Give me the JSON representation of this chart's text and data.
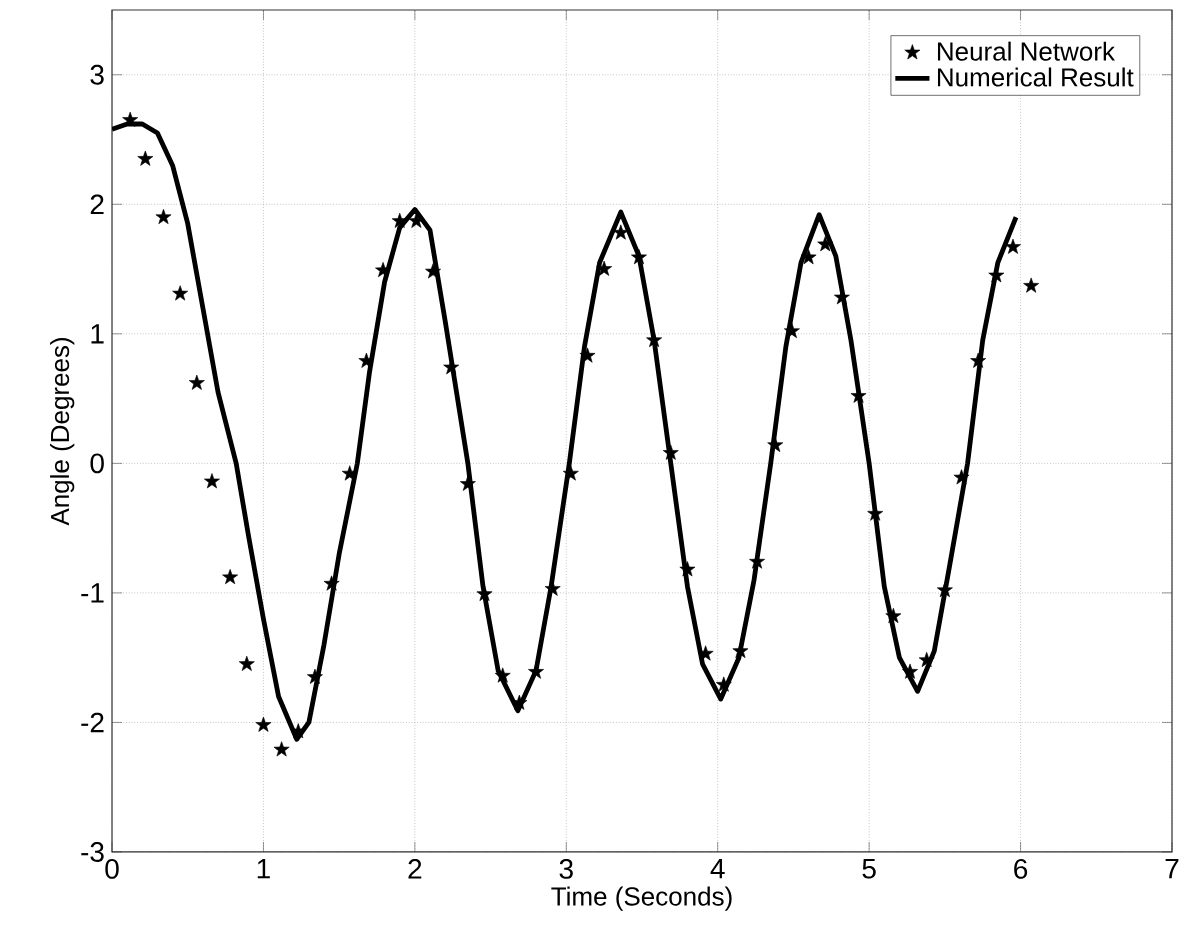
{
  "chart_data": {
    "type": "line",
    "xlabel": "Time (Seconds)",
    "ylabel": "Angle (Degrees)",
    "xlim": [
      0,
      7
    ],
    "ylim": [
      -3,
      3.5
    ],
    "xticks": [
      0,
      1,
      2,
      3,
      4,
      5,
      6,
      7
    ],
    "yticks": [
      -3,
      -2,
      -1,
      0,
      1,
      2,
      3
    ],
    "grid": true,
    "legend": "top right",
    "series": [
      {
        "name": "Neural Network",
        "type": "scatter",
        "marker": "star",
        "color": "#000000",
        "x": [
          0.12,
          0.22,
          0.34,
          0.45,
          0.56,
          0.66,
          0.78,
          0.89,
          1.0,
          1.12,
          1.23,
          1.34,
          1.45,
          1.57,
          1.68,
          1.79,
          1.9,
          2.01,
          2.12,
          2.24,
          2.35,
          2.46,
          2.58,
          2.69,
          2.8,
          2.91,
          3.03,
          3.14,
          3.25,
          3.36,
          3.48,
          3.58,
          3.69,
          3.8,
          3.92,
          4.04,
          4.15,
          4.26,
          4.38,
          4.49,
          4.6,
          4.71,
          4.82,
          4.93,
          5.04,
          5.16,
          5.27,
          5.38,
          5.5,
          5.61,
          5.72,
          5.84,
          5.95,
          6.07
        ],
        "values": [
          2.65,
          2.35,
          1.9,
          1.31,
          0.62,
          -0.14,
          -0.88,
          -1.55,
          -2.02,
          -2.21,
          -2.07,
          -1.65,
          -0.93,
          -0.08,
          0.79,
          1.49,
          1.87,
          1.87,
          1.48,
          0.74,
          -0.16,
          -1.01,
          -1.64,
          -1.85,
          -1.61,
          -0.97,
          -0.08,
          0.83,
          1.5,
          1.78,
          1.59,
          0.95,
          0.08,
          -0.82,
          -1.47,
          -1.71,
          -1.45,
          -0.76,
          0.14,
          1.02,
          1.59,
          1.69,
          1.28,
          0.52,
          -0.39,
          -1.18,
          -1.61,
          -1.52,
          -0.98,
          -0.11,
          0.79,
          1.45,
          1.67,
          1.37
        ]
      },
      {
        "name": "Numerical Result",
        "line_style": "solid",
        "color": "#000000",
        "x": [
          0,
          0.1,
          0.2,
          0.3,
          0.4,
          0.5,
          0.6,
          0.7,
          0.82,
          0.9,
          1.0,
          1.1,
          1.22,
          1.3,
          1.4,
          1.5,
          1.62,
          1.7,
          1.8,
          1.9,
          2.0,
          2.1,
          2.2,
          2.35,
          2.45,
          2.55,
          2.68,
          2.8,
          2.9,
          3.02,
          3.12,
          3.22,
          3.36,
          3.48,
          3.58,
          3.69,
          3.8,
          3.9,
          4.02,
          4.14,
          4.24,
          4.35,
          4.45,
          4.55,
          4.67,
          4.78,
          4.88,
          5.0,
          5.1,
          5.2,
          5.32,
          5.43,
          5.53,
          5.65,
          5.75,
          5.85,
          5.97
        ],
        "values": [
          2.58,
          2.62,
          2.62,
          2.55,
          2.3,
          1.85,
          1.2,
          0.55,
          0,
          -0.55,
          -1.2,
          -1.8,
          -2.13,
          -2.0,
          -1.4,
          -0.7,
          0,
          0.7,
          1.4,
          1.82,
          1.96,
          1.8,
          1.1,
          0,
          -0.95,
          -1.6,
          -1.91,
          -1.6,
          -0.95,
          0,
          0.9,
          1.55,
          1.94,
          1.6,
          0.95,
          0,
          -0.95,
          -1.55,
          -1.82,
          -1.5,
          -0.9,
          0,
          0.9,
          1.55,
          1.92,
          1.6,
          0.95,
          0,
          -0.95,
          -1.5,
          -1.76,
          -1.45,
          -0.8,
          0,
          0.95,
          1.55,
          1.9
        ]
      }
    ]
  }
}
